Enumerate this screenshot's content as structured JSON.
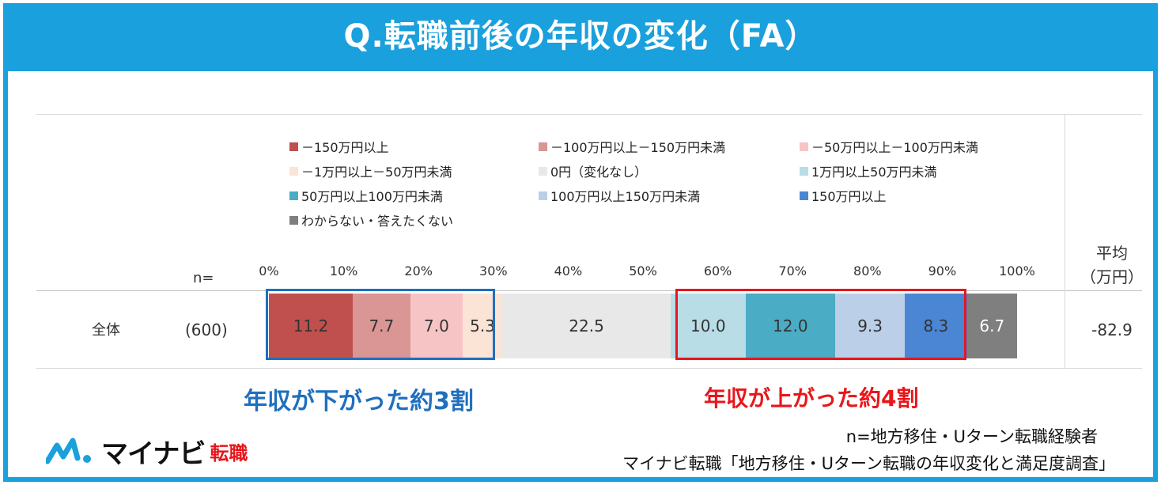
{
  "title": "Q.転職前後の年収の変化（FA）",
  "chart_data": {
    "type": "bar",
    "orientation": "horizontal-stacked-100",
    "xlim": [
      0,
      100
    ],
    "ticks": [
      "0%",
      "10%",
      "20%",
      "30%",
      "40%",
      "50%",
      "60%",
      "70%",
      "80%",
      "90%",
      "100%"
    ],
    "n_header": "n=",
    "avg_header_line1": "平均",
    "avg_header_line2": "（万円）",
    "legend_position": "top",
    "row": {
      "label": "全体",
      "n": "(600)",
      "avg": "-82.9"
    },
    "series": [
      {
        "name": "－150万円以上",
        "value": 11.2,
        "color": "#c0504d",
        "text_color": "#333333"
      },
      {
        "name": "－100万円以上－150万円未満",
        "value": 7.7,
        "color": "#d99694",
        "text_color": "#333333"
      },
      {
        "name": "－50万円以上－100万円未満",
        "value": 7.0,
        "color": "#f6c4c4",
        "text_color": "#333333"
      },
      {
        "name": "－1万円以上－50万円未満",
        "value": 5.3,
        "color": "#fbe3d6",
        "text_color": "#333333"
      },
      {
        "name": "0円（変化なし）",
        "value": 22.5,
        "color": "#e8e8e8",
        "text_color": "#333333"
      },
      {
        "name": "1万円以上50万円未満",
        "value": 10.0,
        "color": "#b8dde7",
        "text_color": "#333333"
      },
      {
        "name": "50万円以上100万円未満",
        "value": 12.0,
        "color": "#4bacc6",
        "text_color": "#333333"
      },
      {
        "name": "100万円以上150万円未満",
        "value": 9.3,
        "color": "#bccfe9",
        "text_color": "#333333"
      },
      {
        "name": "150万円以上",
        "value": 8.3,
        "color": "#4a86d4",
        "text_color": "#333333"
      },
      {
        "name": "わからない・答えたくない",
        "value": 6.7,
        "color": "#7f7f7f",
        "text_color": "#ffffff"
      }
    ]
  },
  "callouts": {
    "down": "年収が下がった約3割",
    "up": "年収が上がった約4割"
  },
  "logo": {
    "name": "マイナビ",
    "sub": "転職"
  },
  "source": {
    "line1": "n=地方移住・Uターン転職経験者",
    "line2": "マイナビ転職「地方移住・Uターン転職の年収変化と満足度調査」"
  },
  "colors": {
    "frame": "#1aa0dc",
    "highlight_blue": "#1f6fbf",
    "highlight_red": "#e8161b"
  }
}
